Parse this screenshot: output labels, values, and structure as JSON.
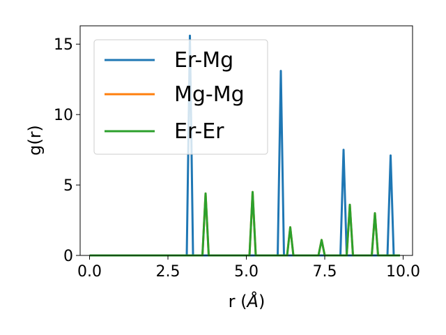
{
  "chart_data": {
    "type": "line",
    "title": "",
    "xlabel": "r (",
    "xlabel_symbol": "Å",
    "xlabel_close": ")",
    "ylabel": "g(r)",
    "xlim": [
      -0.3,
      10.3
    ],
    "ylim": [
      0,
      16.3
    ],
    "xticks": [
      0.0,
      2.5,
      5.0,
      7.5,
      10.0
    ],
    "xtick_labels": [
      "0.0",
      "2.5",
      "5.0",
      "7.5",
      "10.0"
    ],
    "yticks": [
      0,
      5,
      10,
      15
    ],
    "ytick_labels": [
      "0",
      "5",
      "10",
      "15"
    ],
    "grid": false,
    "legend_position": "top-left",
    "series": [
      {
        "name": "Er-Mg",
        "color": "#1f77b4",
        "x": [
          0.0,
          3.1,
          3.2,
          3.3,
          6.0,
          6.1,
          6.2,
          8.0,
          8.1,
          8.2,
          9.5,
          9.6,
          9.7,
          9.9
        ],
        "y": [
          0,
          0,
          15.6,
          0,
          0,
          13.1,
          0,
          0,
          7.5,
          0,
          0,
          7.1,
          0,
          0
        ]
      },
      {
        "name": "Mg-Mg",
        "color": "#ff7f0e",
        "x": [
          0.0,
          3.6,
          3.7,
          3.8,
          5.1,
          5.2,
          5.3,
          6.3,
          6.4,
          6.5,
          7.3,
          7.4,
          7.5,
          8.2,
          8.3,
          8.4,
          9.0,
          9.1,
          9.2,
          9.9
        ],
        "y": [
          0,
          0,
          4.4,
          0,
          0,
          4.5,
          0,
          0,
          2.0,
          0,
          0,
          1.1,
          0,
          0,
          3.6,
          0,
          0,
          3.0,
          0,
          0
        ]
      },
      {
        "name": "Er-Er",
        "color": "#2ca02c",
        "x": [
          0.0,
          3.6,
          3.7,
          3.8,
          5.1,
          5.2,
          5.3,
          6.3,
          6.4,
          6.5,
          7.3,
          7.4,
          7.5,
          8.2,
          8.3,
          8.4,
          9.0,
          9.1,
          9.2,
          9.9
        ],
        "y": [
          0,
          0,
          4.4,
          0,
          0,
          4.5,
          0,
          0,
          2.0,
          0,
          0,
          1.1,
          0,
          0,
          3.6,
          0,
          0,
          3.0,
          0,
          0
        ]
      }
    ]
  }
}
